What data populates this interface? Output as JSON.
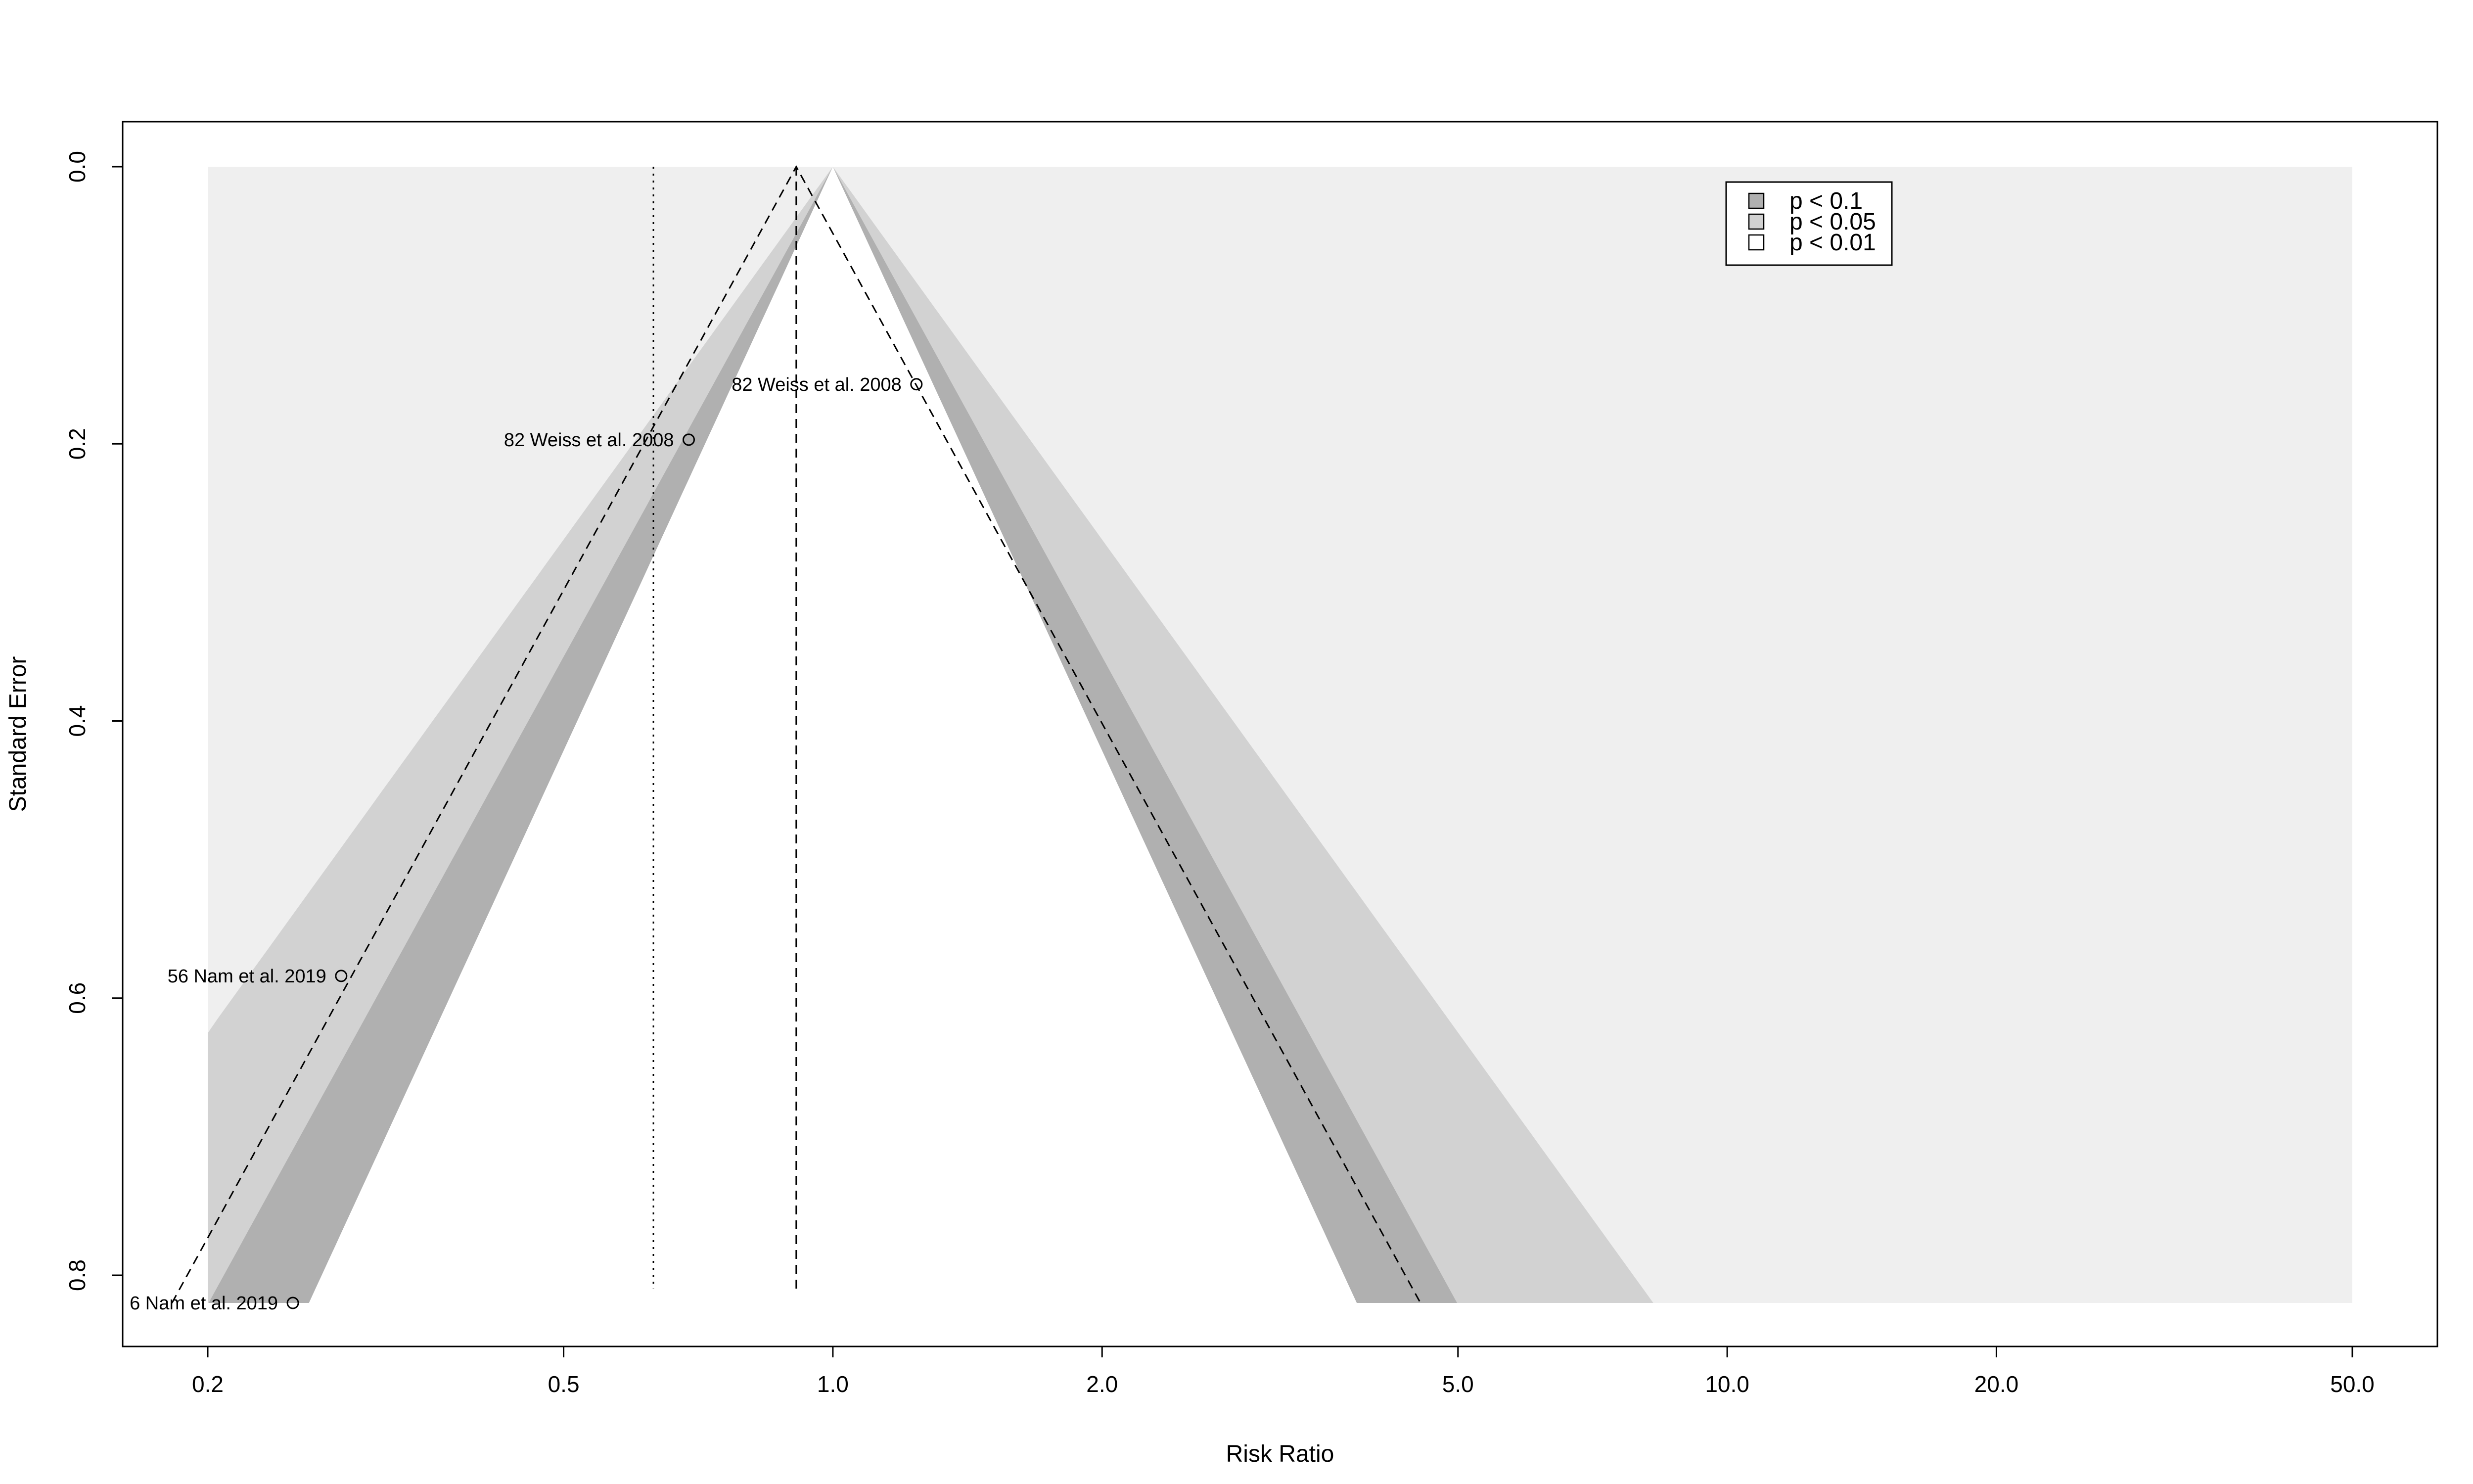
{
  "chart_data": {
    "type": "scatter",
    "subtype": "contour-enhanced funnel plot",
    "title": "",
    "xlabel": "Risk Ratio",
    "ylabel": "Standard Error",
    "x_scale": "log",
    "x_ticks": [
      "0.2",
      "0.5",
      "1.0",
      "2.0",
      "5.0",
      "10.0",
      "20.0",
      "50.0"
    ],
    "y_ticks": [
      "0.0",
      "0.2",
      "0.4",
      "0.6",
      "0.8"
    ],
    "x_range": [
      0.2,
      50.0
    ],
    "y_range": [
      0.0,
      0.82
    ],
    "y_reversed": true,
    "null_value": 1.0,
    "pooled_estimate": 0.91,
    "reference_line_estimate": 0.63,
    "points": [
      {
        "label": "82 Weiss et al. 2008",
        "x": 1.24,
        "y": 0.157
      },
      {
        "label": "82 Weiss et al. 2008",
        "x": 0.69,
        "y": 0.197
      },
      {
        "label": "56 Nam et al. 2019",
        "x": 0.282,
        "y": 0.584
      },
      {
        "label": "6 Nam et al. 2019",
        "x": 0.249,
        "y": 0.82
      }
    ],
    "contours": [
      {
        "label": "p < 0.1",
        "z": 1.645,
        "color": "#b0b0b0"
      },
      {
        "label": "p < 0.05",
        "z": 1.96,
        "color": "#d2d2d2"
      },
      {
        "label": "p < 0.01",
        "z": 2.576,
        "color": "#efefef"
      }
    ],
    "legend_position": "top-right",
    "grid": false
  }
}
